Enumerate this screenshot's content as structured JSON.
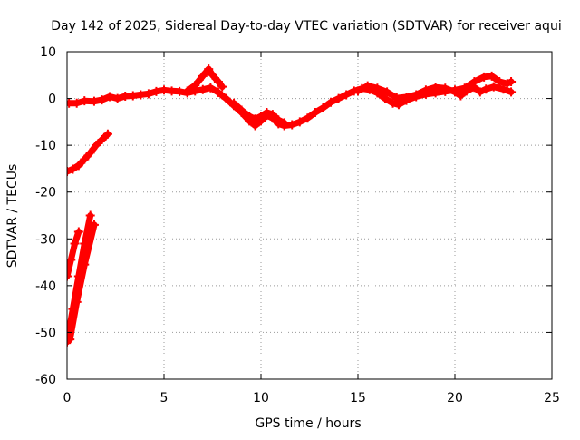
{
  "chart_data": {
    "type": "scatter",
    "title": "Day 142 of 2025, Sidereal Day-to-day VTEC variation (SDTVAR) for receiver aqui",
    "xlabel": "GPS time / hours",
    "ylabel": "SDTVAR / TECUs",
    "xlim": [
      0,
      25
    ],
    "ylim": [
      -60,
      10
    ],
    "xticks": [
      0,
      5,
      10,
      15,
      20,
      25
    ],
    "yticks": [
      10,
      0,
      -10,
      -20,
      -30,
      -40,
      -50,
      -60
    ],
    "grid": true,
    "series_color": "#ff0000",
    "series": [
      {
        "name": "main-band",
        "points": [
          [
            0.1,
            -1.0
          ],
          [
            0.5,
            -1.0
          ],
          [
            0.9,
            -0.5
          ],
          [
            1.4,
            -0.6
          ],
          [
            1.8,
            -0.3
          ],
          [
            2.2,
            0.4
          ],
          [
            2.6,
            0.0
          ],
          [
            3.0,
            0.5
          ],
          [
            3.4,
            0.6
          ],
          [
            3.8,
            0.8
          ],
          [
            4.2,
            1.0
          ],
          [
            4.6,
            1.5
          ],
          [
            5.0,
            1.8
          ],
          [
            5.4,
            1.6
          ],
          [
            5.8,
            1.5
          ],
          [
            6.2,
            1.2
          ],
          [
            6.6,
            1.6
          ],
          [
            7.0,
            1.9
          ],
          [
            7.4,
            2.3
          ],
          [
            7.8,
            1.3
          ],
          [
            8.2,
            0.0
          ],
          [
            8.6,
            -1.5
          ],
          [
            9.0,
            -3.0
          ],
          [
            9.4,
            -4.8
          ],
          [
            9.7,
            -5.8
          ],
          [
            10.0,
            -4.8
          ],
          [
            10.3,
            -3.6
          ],
          [
            10.6,
            -4.2
          ],
          [
            10.9,
            -5.4
          ],
          [
            11.2,
            -5.8
          ],
          [
            11.6,
            -5.6
          ],
          [
            12.0,
            -5.0
          ],
          [
            12.4,
            -4.2
          ],
          [
            12.8,
            -3.0
          ],
          [
            13.2,
            -2.0
          ],
          [
            13.6,
            -0.8
          ],
          [
            14.0,
            0.0
          ],
          [
            14.4,
            0.8
          ],
          [
            14.8,
            1.6
          ],
          [
            15.2,
            2.1
          ],
          [
            15.6,
            1.9
          ],
          [
            16.0,
            1.2
          ],
          [
            16.4,
            0.0
          ],
          [
            16.8,
            -1.0
          ],
          [
            17.1,
            -1.3
          ],
          [
            17.5,
            -0.4
          ],
          [
            18.0,
            0.4
          ],
          [
            18.5,
            0.9
          ],
          [
            19.0,
            1.2
          ],
          [
            19.5,
            1.5
          ],
          [
            20.0,
            1.8
          ],
          [
            20.5,
            2.2
          ],
          [
            21.0,
            3.6
          ],
          [
            21.5,
            4.6
          ],
          [
            21.9,
            4.8
          ],
          [
            22.3,
            3.6
          ],
          [
            22.7,
            3.2
          ],
          [
            22.9,
            3.6
          ]
        ]
      },
      {
        "name": "upper-branch",
        "points": [
          [
            6.2,
            1.6
          ],
          [
            6.6,
            2.8
          ],
          [
            7.0,
            4.8
          ],
          [
            7.3,
            6.3
          ],
          [
            7.5,
            5.0
          ],
          [
            7.8,
            3.6
          ],
          [
            8.0,
            2.5
          ]
        ]
      },
      {
        "name": "dip-branch",
        "points": [
          [
            8.6,
            -1.0
          ],
          [
            9.0,
            -2.5
          ],
          [
            9.4,
            -3.8
          ],
          [
            9.7,
            -4.4
          ],
          [
            10.0,
            -3.8
          ],
          [
            10.3,
            -3.0
          ],
          [
            10.6,
            -3.4
          ],
          [
            10.9,
            -4.6
          ],
          [
            11.2,
            -5.2
          ]
        ]
      },
      {
        "name": "late-branch",
        "points": [
          [
            15.0,
            1.6
          ],
          [
            15.5,
            2.7
          ],
          [
            16.0,
            2.2
          ],
          [
            16.5,
            1.4
          ],
          [
            17.0,
            0.1
          ],
          [
            17.5,
            0.3
          ],
          [
            18.0,
            0.8
          ],
          [
            18.5,
            1.8
          ],
          [
            19.0,
            2.4
          ],
          [
            19.5,
            2.2
          ],
          [
            20.0,
            1.4
          ],
          [
            20.3,
            0.6
          ],
          [
            20.6,
            1.6
          ],
          [
            21.0,
            2.4
          ],
          [
            21.3,
            1.4
          ],
          [
            21.6,
            2.0
          ],
          [
            22.0,
            2.5
          ],
          [
            22.5,
            2.0
          ],
          [
            22.9,
            1.4
          ]
        ]
      },
      {
        "name": "early-rise",
        "points": [
          [
            0.0,
            -15.6
          ],
          [
            0.3,
            -15.1
          ],
          [
            0.6,
            -14.3
          ],
          [
            0.9,
            -13.0
          ],
          [
            1.2,
            -11.6
          ],
          [
            1.5,
            -10.0
          ],
          [
            1.8,
            -8.8
          ],
          [
            2.1,
            -7.6
          ]
        ]
      },
      {
        "name": "early-steep-a",
        "points": [
          [
            0.0,
            -38.0
          ],
          [
            0.2,
            -34.5
          ],
          [
            0.4,
            -31.0
          ],
          [
            0.6,
            -28.5
          ]
        ]
      },
      {
        "name": "early-steep-b",
        "points": [
          [
            0.0,
            -52.0
          ],
          [
            0.3,
            -45.0
          ],
          [
            0.6,
            -38.0
          ],
          [
            0.9,
            -31.0
          ],
          [
            1.2,
            -25.0
          ]
        ]
      },
      {
        "name": "early-steep-c",
        "points": [
          [
            0.15,
            -51.5
          ],
          [
            0.5,
            -43.5
          ],
          [
            0.9,
            -35.5
          ],
          [
            1.4,
            -27.0
          ]
        ]
      }
    ]
  }
}
